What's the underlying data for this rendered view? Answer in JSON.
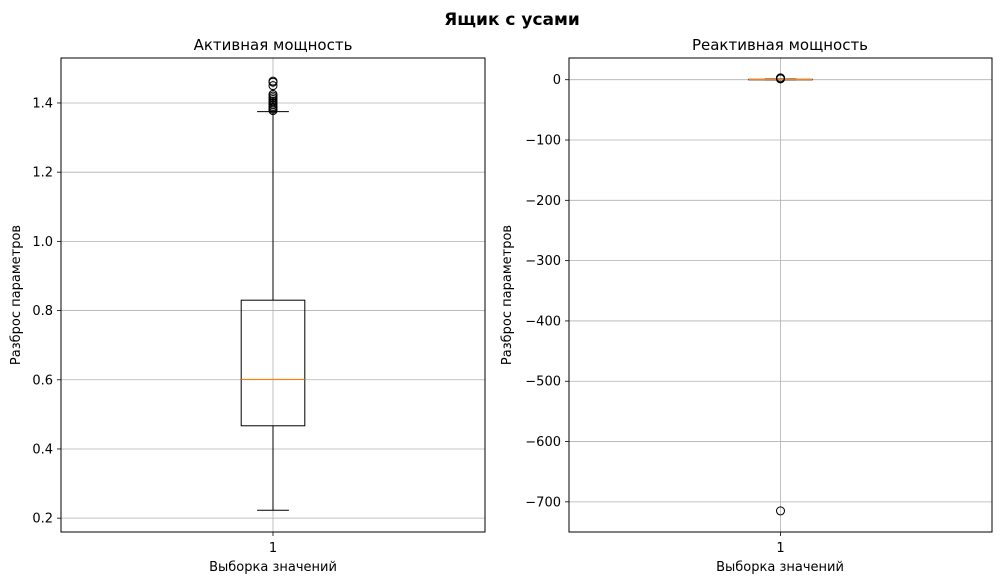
{
  "figure": {
    "title": "Ящик с усами"
  },
  "chart_data": [
    {
      "type": "boxplot",
      "title": "Активная мощность",
      "xlabel": "Выборка значений",
      "ylabel": "Разброс параметров",
      "categories": [
        "1"
      ],
      "ylim": [
        0.16,
        1.53
      ],
      "yticks": [
        0.2,
        0.4,
        0.6,
        0.8,
        1.0,
        1.2,
        1.4
      ],
      "ytick_labels": [
        "0.2",
        "0.4",
        "0.6",
        "0.8",
        "1.0",
        "1.2",
        "1.4"
      ],
      "grid": true,
      "box": {
        "whisker_low": 0.223,
        "q1": 0.467,
        "median": 0.601,
        "q3": 0.83,
        "whisker_high": 1.375
      },
      "outliers": [
        1.378,
        1.382,
        1.386,
        1.39,
        1.395,
        1.4,
        1.405,
        1.41,
        1.415,
        1.42,
        1.425,
        1.45,
        1.46,
        1.463
      ]
    },
    {
      "type": "boxplot",
      "title": "Реактивная мощность",
      "xlabel": "Выборка значений",
      "ylabel": "Разброс параметров",
      "categories": [
        "1"
      ],
      "ylim": [
        -750,
        36
      ],
      "yticks": [
        0,
        -100,
        -200,
        -300,
        -400,
        -500,
        -600,
        -700
      ],
      "ytick_labels": [
        "0",
        "−100",
        "−200",
        "−300",
        "−400",
        "−500",
        "−600",
        "−700"
      ],
      "grid": true,
      "box": {
        "whisker_low": 0.0,
        "q1": 0.2,
        "median": 0.4,
        "q3": 0.65,
        "whisker_high": 1.2
      },
      "outliers": [
        1.4,
        1.6,
        1.8,
        2.0,
        2.2,
        2.5,
        2.8,
        3.0,
        -715.0
      ]
    }
  ]
}
